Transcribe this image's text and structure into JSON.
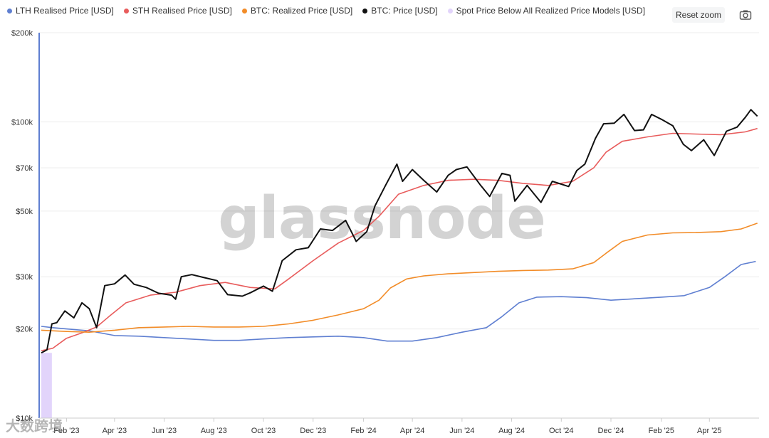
{
  "legend": [
    {
      "label": "LTH Realised Price [USD]",
      "color": "#5f7fd1"
    },
    {
      "label": "STH Realised Price [USD]",
      "color": "#e85c5c"
    },
    {
      "label": "BTC: Realized Price [USD]",
      "color": "#f28c28"
    },
    {
      "label": "BTC: Price [USD]",
      "color": "#111111"
    },
    {
      "label": "Spot Price Below All Realized Price Models [USD]",
      "color": "#e2d4fb"
    }
  ],
  "toolbar": {
    "reset_zoom": "Reset zoom",
    "camera_icon": "camera-icon"
  },
  "watermark": "glassnode",
  "corner_mark": "大数跨境",
  "chart_data": {
    "type": "line",
    "y_scale": "log",
    "ylim": [
      10000,
      200000
    ],
    "y_ticks": [
      {
        "value": 10000,
        "label": "$10k"
      },
      {
        "value": 20000,
        "label": "$20k"
      },
      {
        "value": 30000,
        "label": "$30k"
      },
      {
        "value": 50000,
        "label": "$50k"
      },
      {
        "value": 70000,
        "label": "$70k"
      },
      {
        "value": 100000,
        "label": "$100k"
      },
      {
        "value": 200000,
        "label": "$200k"
      }
    ],
    "xlim": [
      "2023-01-01",
      "2025-06-01"
    ],
    "x_ticks": [
      {
        "date": "2023-02-01",
        "label": "Feb '23"
      },
      {
        "date": "2023-04-01",
        "label": "Apr '23"
      },
      {
        "date": "2023-06-01",
        "label": "Jun '23"
      },
      {
        "date": "2023-08-01",
        "label": "Aug '23"
      },
      {
        "date": "2023-10-01",
        "label": "Oct '23"
      },
      {
        "date": "2023-12-01",
        "label": "Dec '23"
      },
      {
        "date": "2024-02-01",
        "label": "Feb '24"
      },
      {
        "date": "2024-04-01",
        "label": "Apr '24"
      },
      {
        "date": "2024-06-01",
        "label": "Jun '24"
      },
      {
        "date": "2024-08-01",
        "label": "Aug '24"
      },
      {
        "date": "2024-10-01",
        "label": "Oct '24"
      },
      {
        "date": "2024-12-01",
        "label": "Dec '24"
      },
      {
        "date": "2025-02-01",
        "label": "Feb '25"
      },
      {
        "date": "2025-04-01",
        "label": "Apr '25"
      }
    ],
    "highlight_band": {
      "from": "2023-01-01",
      "to": "2023-01-14",
      "color": "#e2d4fb"
    },
    "series": [
      {
        "name": "LTH Realised Price [USD]",
        "color": "#5f7fd1",
        "points": [
          [
            "2023-01-01",
            20400
          ],
          [
            "2023-01-15",
            20200
          ],
          [
            "2023-02-01",
            20000
          ],
          [
            "2023-03-01",
            19700
          ],
          [
            "2023-04-01",
            19000
          ],
          [
            "2023-05-01",
            18900
          ],
          [
            "2023-06-01",
            18700
          ],
          [
            "2023-07-01",
            18500
          ],
          [
            "2023-08-01",
            18300
          ],
          [
            "2023-09-01",
            18300
          ],
          [
            "2023-10-01",
            18500
          ],
          [
            "2023-11-01",
            18700
          ],
          [
            "2023-12-01",
            18800
          ],
          [
            "2024-01-01",
            18900
          ],
          [
            "2024-02-01",
            18700
          ],
          [
            "2024-03-01",
            18200
          ],
          [
            "2024-04-01",
            18200
          ],
          [
            "2024-05-01",
            18700
          ],
          [
            "2024-06-01",
            19500
          ],
          [
            "2024-07-01",
            20200
          ],
          [
            "2024-07-20",
            22000
          ],
          [
            "2024-08-10",
            24500
          ],
          [
            "2024-09-01",
            25600
          ],
          [
            "2024-10-01",
            25700
          ],
          [
            "2024-11-01",
            25500
          ],
          [
            "2024-12-01",
            25000
          ],
          [
            "2025-01-01",
            25300
          ],
          [
            "2025-02-01",
            25600
          ],
          [
            "2025-03-01",
            25900
          ],
          [
            "2025-04-01",
            27600
          ],
          [
            "2025-04-20",
            30000
          ],
          [
            "2025-05-10",
            33000
          ],
          [
            "2025-05-28",
            33800
          ]
        ]
      },
      {
        "name": "STH Realised Price [USD]",
        "color": "#e85c5c",
        "points": [
          [
            "2023-01-01",
            16900
          ],
          [
            "2023-01-15",
            17200
          ],
          [
            "2023-02-01",
            18600
          ],
          [
            "2023-02-20",
            19400
          ],
          [
            "2023-03-10",
            20300
          ],
          [
            "2023-03-25",
            22000
          ],
          [
            "2023-04-15",
            24500
          ],
          [
            "2023-05-15",
            26000
          ],
          [
            "2023-06-15",
            26600
          ],
          [
            "2023-07-15",
            28000
          ],
          [
            "2023-08-15",
            28700
          ],
          [
            "2023-09-15",
            27600
          ],
          [
            "2023-10-15",
            27300
          ],
          [
            "2023-11-01",
            29500
          ],
          [
            "2023-12-01",
            34000
          ],
          [
            "2024-01-01",
            39000
          ],
          [
            "2024-02-01",
            43000
          ],
          [
            "2024-02-20",
            48000
          ],
          [
            "2024-03-15",
            57000
          ],
          [
            "2024-04-15",
            61000
          ],
          [
            "2024-05-15",
            63500
          ],
          [
            "2024-06-15",
            64000
          ],
          [
            "2024-07-15",
            63500
          ],
          [
            "2024-08-15",
            62000
          ],
          [
            "2024-09-15",
            61000
          ],
          [
            "2024-10-15",
            63000
          ],
          [
            "2024-11-10",
            70000
          ],
          [
            "2024-11-25",
            79000
          ],
          [
            "2024-12-15",
            86000
          ],
          [
            "2025-01-15",
            89000
          ],
          [
            "2025-02-15",
            91500
          ],
          [
            "2025-03-15",
            91000
          ],
          [
            "2025-04-15",
            90500
          ],
          [
            "2025-05-15",
            92500
          ],
          [
            "2025-05-30",
            95000
          ]
        ]
      },
      {
        "name": "BTC: Realized Price [USD]",
        "color": "#f28c28",
        "points": [
          [
            "2023-01-01",
            19800
          ],
          [
            "2023-02-01",
            19600
          ],
          [
            "2023-03-01",
            19500
          ],
          [
            "2023-04-01",
            19800
          ],
          [
            "2023-05-01",
            20200
          ],
          [
            "2023-06-01",
            20300
          ],
          [
            "2023-07-01",
            20400
          ],
          [
            "2023-08-01",
            20300
          ],
          [
            "2023-09-01",
            20300
          ],
          [
            "2023-10-01",
            20400
          ],
          [
            "2023-11-01",
            20800
          ],
          [
            "2023-12-01",
            21400
          ],
          [
            "2024-01-01",
            22300
          ],
          [
            "2024-02-01",
            23400
          ],
          [
            "2024-02-20",
            25000
          ],
          [
            "2024-03-05",
            27500
          ],
          [
            "2024-03-25",
            29500
          ],
          [
            "2024-04-15",
            30200
          ],
          [
            "2024-05-15",
            30700
          ],
          [
            "2024-06-15",
            31000
          ],
          [
            "2024-07-15",
            31300
          ],
          [
            "2024-08-15",
            31500
          ],
          [
            "2024-09-15",
            31600
          ],
          [
            "2024-10-15",
            31900
          ],
          [
            "2024-11-10",
            33500
          ],
          [
            "2024-11-25",
            36000
          ],
          [
            "2024-12-15",
            39500
          ],
          [
            "2025-01-15",
            41500
          ],
          [
            "2025-02-15",
            42200
          ],
          [
            "2025-03-15",
            42300
          ],
          [
            "2025-04-15",
            42600
          ],
          [
            "2025-05-10",
            43500
          ],
          [
            "2025-05-30",
            45500
          ]
        ]
      },
      {
        "name": "BTC: Price [USD]",
        "color": "#111111",
        "points": [
          [
            "2023-01-01",
            16600
          ],
          [
            "2023-01-08",
            17000
          ],
          [
            "2023-01-14",
            20800
          ],
          [
            "2023-01-20",
            21000
          ],
          [
            "2023-01-30",
            23000
          ],
          [
            "2023-02-10",
            21800
          ],
          [
            "2023-02-20",
            24500
          ],
          [
            "2023-03-01",
            23400
          ],
          [
            "2023-03-10",
            20200
          ],
          [
            "2023-03-20",
            28000
          ],
          [
            "2023-04-01",
            28400
          ],
          [
            "2023-04-14",
            30400
          ],
          [
            "2023-04-25",
            28300
          ],
          [
            "2023-05-10",
            27600
          ],
          [
            "2023-05-25",
            26400
          ],
          [
            "2023-06-10",
            26000
          ],
          [
            "2023-06-15",
            25200
          ],
          [
            "2023-06-22",
            30000
          ],
          [
            "2023-07-05",
            30500
          ],
          [
            "2023-07-20",
            29800
          ],
          [
            "2023-08-05",
            29100
          ],
          [
            "2023-08-18",
            26100
          ],
          [
            "2023-09-05",
            25800
          ],
          [
            "2023-09-15",
            26500
          ],
          [
            "2023-10-01",
            27900
          ],
          [
            "2023-10-12",
            26800
          ],
          [
            "2023-10-24",
            34000
          ],
          [
            "2023-11-10",
            37000
          ],
          [
            "2023-11-25",
            37600
          ],
          [
            "2023-12-10",
            43500
          ],
          [
            "2023-12-25",
            43000
          ],
          [
            "2024-01-10",
            46500
          ],
          [
            "2024-01-23",
            39500
          ],
          [
            "2024-02-05",
            42600
          ],
          [
            "2024-02-15",
            52000
          ],
          [
            "2024-02-28",
            61000
          ],
          [
            "2024-03-13",
            72000
          ],
          [
            "2024-03-20",
            63000
          ],
          [
            "2024-04-01",
            69000
          ],
          [
            "2024-04-15",
            63500
          ],
          [
            "2024-05-01",
            58000
          ],
          [
            "2024-05-15",
            66000
          ],
          [
            "2024-05-25",
            69000
          ],
          [
            "2024-06-07",
            70500
          ],
          [
            "2024-06-24",
            61000
          ],
          [
            "2024-07-05",
            56000
          ],
          [
            "2024-07-20",
            67000
          ],
          [
            "2024-07-30",
            66000
          ],
          [
            "2024-08-05",
            54000
          ],
          [
            "2024-08-20",
            61000
          ],
          [
            "2024-09-06",
            53500
          ],
          [
            "2024-09-20",
            63000
          ],
          [
            "2024-10-10",
            60500
          ],
          [
            "2024-10-20",
            68500
          ],
          [
            "2024-10-30",
            72000
          ],
          [
            "2024-11-12",
            88000
          ],
          [
            "2024-11-22",
            98500
          ],
          [
            "2024-12-05",
            99000
          ],
          [
            "2024-12-17",
            106000
          ],
          [
            "2024-12-30",
            93500
          ],
          [
            "2025-01-10",
            94000
          ],
          [
            "2025-01-20",
            106000
          ],
          [
            "2025-02-01",
            102000
          ],
          [
            "2025-02-15",
            97000
          ],
          [
            "2025-02-28",
            84000
          ],
          [
            "2025-03-10",
            80000
          ],
          [
            "2025-03-25",
            87000
          ],
          [
            "2025-04-07",
            77000
          ],
          [
            "2025-04-22",
            93000
          ],
          [
            "2025-05-05",
            96000
          ],
          [
            "2025-05-15",
            103500
          ],
          [
            "2025-05-22",
            110000
          ],
          [
            "2025-05-30",
            104500
          ]
        ]
      }
    ]
  }
}
